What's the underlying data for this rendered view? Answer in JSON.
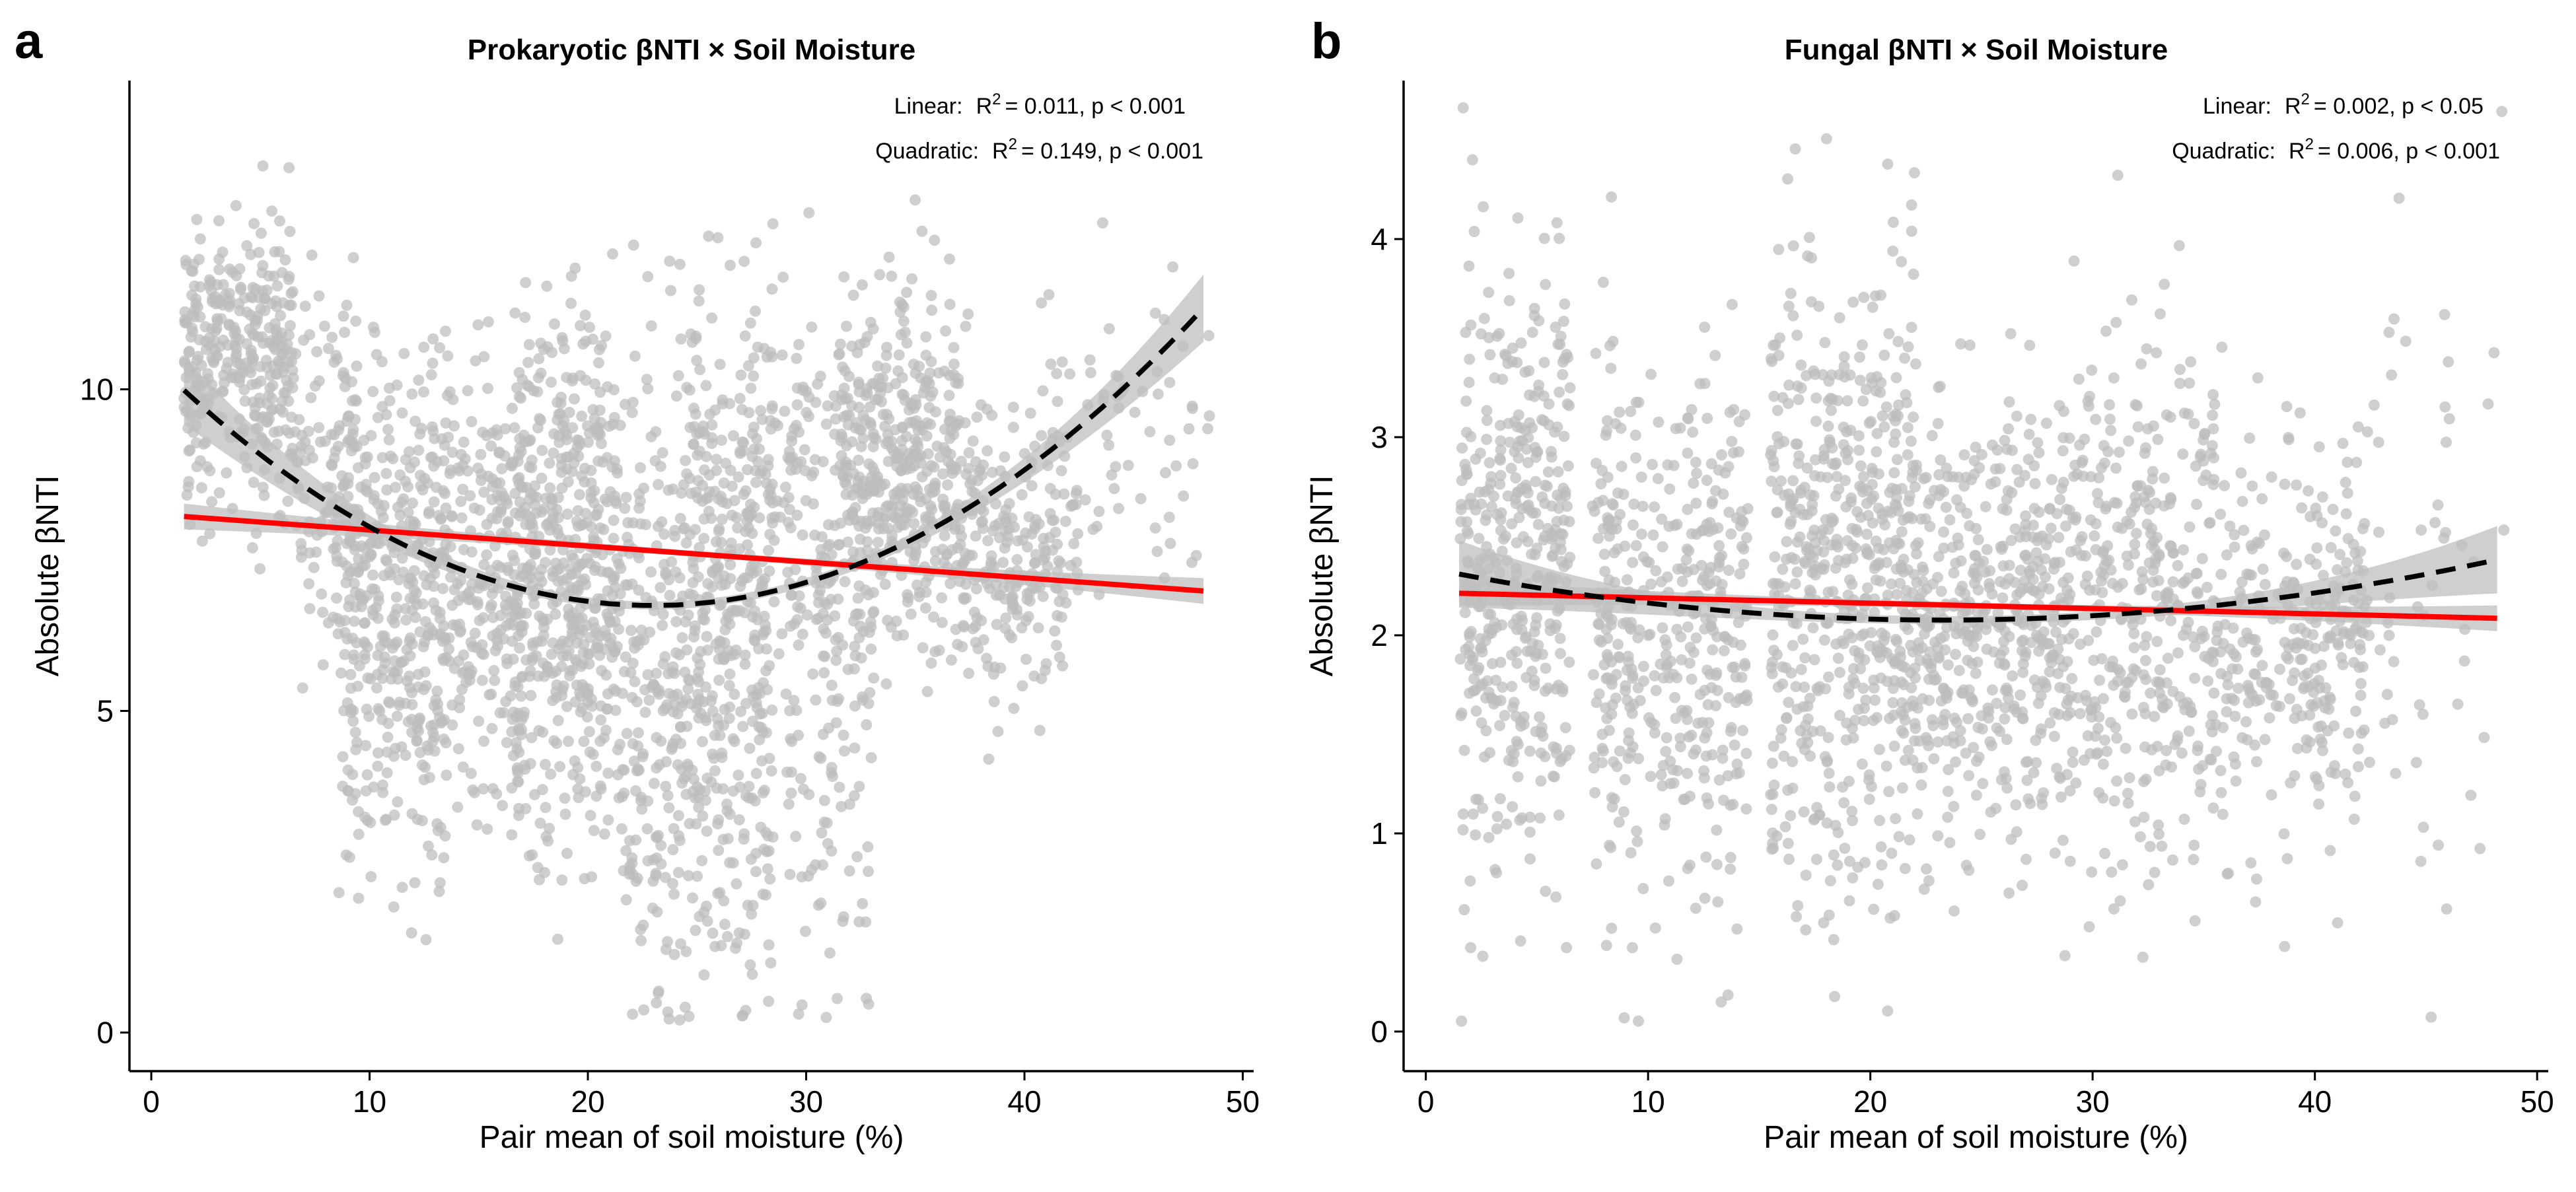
{
  "chart_data": [
    {
      "type": "scatter",
      "panel_label": "a",
      "title": "Prokaryotic βNTI × Soil Moisture",
      "xlabel": "Pair mean of soil moisture (%)",
      "ylabel": "Absolute βNTI",
      "xlim": [
        -1,
        50.5
      ],
      "ylim": [
        -0.6,
        14.8
      ],
      "xticks": [
        0,
        10,
        20,
        30,
        40,
        50
      ],
      "yticks": [
        0,
        5,
        10
      ],
      "grid": false,
      "point_color": "#bdbdbd",
      "clusters": [
        {
          "x": [
            1.5,
            6.5
          ],
          "y_mean": 10.4,
          "y_sd": 1.1,
          "n": 340
        },
        {
          "x": [
            6.5,
            9.5
          ],
          "y_mean": 8.8,
          "y_sd": 1.5,
          "n": 110
        },
        {
          "x": [
            8.5,
            13.5
          ],
          "y_mean": 6.6,
          "y_sd": 2.0,
          "n": 420
        },
        {
          "x": [
            13.5,
            17.0
          ],
          "y_mean": 7.2,
          "y_sd": 1.7,
          "n": 220
        },
        {
          "x": [
            16.5,
            21.5
          ],
          "y_mean": 6.9,
          "y_sd": 2.0,
          "n": 520
        },
        {
          "x": [
            21.5,
            28.5
          ],
          "y_mean": 5.4,
          "y_sd": 2.8,
          "n": 520
        },
        {
          "x": [
            24.5,
            31.5
          ],
          "y_mean": 8.2,
          "y_sd": 1.5,
          "n": 220
        },
        {
          "x": [
            29.0,
            33.0
          ],
          "y_mean": 5.0,
          "y_sd": 2.3,
          "n": 120
        },
        {
          "x": [
            31.5,
            37.0
          ],
          "y_mean": 8.7,
          "y_sd": 1.3,
          "n": 420
        },
        {
          "x": [
            37.0,
            42.5
          ],
          "y_mean": 7.6,
          "y_sd": 1.2,
          "n": 240
        },
        {
          "x": [
            42.5,
            48.5
          ],
          "y_mean": 9.2,
          "y_sd": 1.4,
          "n": 55
        }
      ],
      "linear_fit": {
        "intercept": 8.06,
        "slope": -0.0248,
        "x_range": [
          1.5,
          48.2
        ],
        "color": "#ff0000",
        "style": "solid"
      },
      "quadratic_fit": {
        "a": 10.47,
        "b": -0.3336,
        "c": 0.007262,
        "x_range": [
          1.5,
          48.2
        ],
        "color": "#000000",
        "style": "dashed",
        "ci_color": "#bfbfbf"
      },
      "annotations": [
        {
          "label": "Linear:",
          "r2": "= 0.011, p < 0.001"
        },
        {
          "label": "Quadratic:",
          "r2": "= 0.149, p < 0.001"
        }
      ]
    },
    {
      "type": "scatter",
      "panel_label": "b",
      "title": "Fungal βNTI × Soil Moisture",
      "xlabel": "Pair mean of soil moisture (%)",
      "ylabel": "Absolute βNTI",
      "xlim": [
        -1,
        50.5
      ],
      "ylim": [
        -0.2,
        4.8
      ],
      "xticks": [
        0,
        10,
        20,
        30,
        40,
        50
      ],
      "yticks": [
        0,
        1,
        2,
        3,
        4
      ],
      "grid": false,
      "point_color": "#bdbdbd",
      "clusters": [
        {
          "x": [
            1.5,
            6.5
          ],
          "y_mean": 2.4,
          "y_sd": 0.8,
          "n": 420
        },
        {
          "x": [
            7.5,
            14.5
          ],
          "y_mean": 2.0,
          "y_sd": 0.7,
          "n": 420
        },
        {
          "x": [
            15.5,
            22.0
          ],
          "y_mean": 2.3,
          "y_sd": 0.8,
          "n": 560
        },
        {
          "x": [
            22.0,
            29.0
          ],
          "y_mean": 2.05,
          "y_sd": 0.55,
          "n": 480
        },
        {
          "x": [
            29.0,
            35.5
          ],
          "y_mean": 2.2,
          "y_sd": 0.7,
          "n": 360
        },
        {
          "x": [
            35.5,
            42.5
          ],
          "y_mean": 2.0,
          "y_sd": 0.5,
          "n": 300
        },
        {
          "x": [
            42.5,
            48.5
          ],
          "y_mean": 2.1,
          "y_sd": 0.9,
          "n": 50
        }
      ],
      "linear_fit": {
        "intercept": 2.216,
        "slope": -0.0027,
        "x_range": [
          1.5,
          48.2
        ],
        "color": "#ff0000",
        "style": "solid"
      },
      "quadratic_fit": {
        "a": 2.342,
        "b": -0.0228,
        "c": 0.00049,
        "x_range": [
          1.5,
          48.2
        ],
        "color": "#000000",
        "style": "dashed",
        "ci_color": "#bfbfbf"
      },
      "annotations": [
        {
          "label": "Linear:",
          "r2": "= 0.002, p < 0.05"
        },
        {
          "label": "Quadratic:",
          "r2": "= 0.006, p < 0.001"
        }
      ]
    }
  ]
}
